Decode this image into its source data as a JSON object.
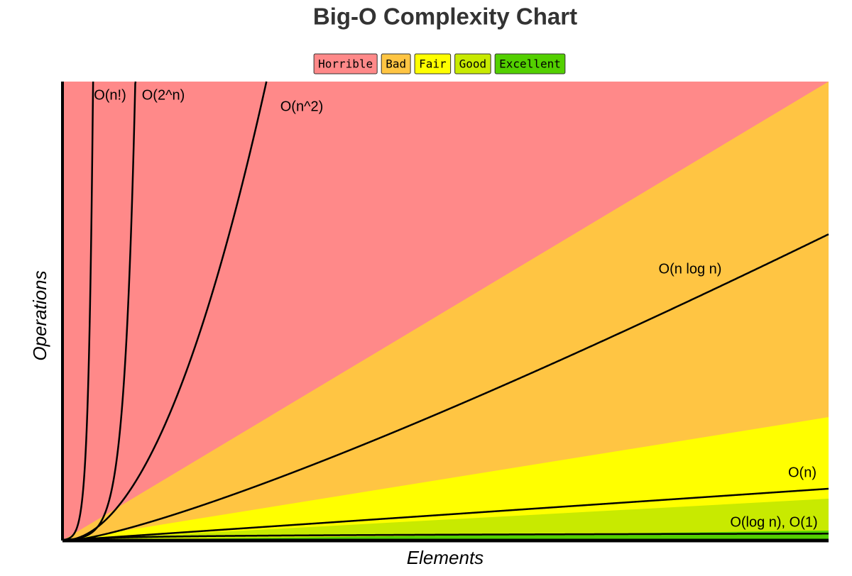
{
  "chart_data": {
    "type": "complexity",
    "title": "Big-O Complexity Chart",
    "xlabel": "Elements",
    "ylabel": "Operations",
    "zones": [
      {
        "name": "Horrible",
        "color": "#ff8989"
      },
      {
        "name": "Bad",
        "color": "#ffc543"
      },
      {
        "name": "Fair",
        "color": "#ffff00"
      },
      {
        "name": "Good",
        "color": "#c8ea00"
      },
      {
        "name": "Excellent",
        "color": "#53d000"
      }
    ],
    "curves": [
      {
        "label": "O(n!)"
      },
      {
        "label": "O(2^n)"
      },
      {
        "label": "O(n^2)"
      },
      {
        "label": "O(n log n)"
      },
      {
        "label": "O(n)"
      },
      {
        "label": "O(log n), O(1)"
      }
    ]
  }
}
